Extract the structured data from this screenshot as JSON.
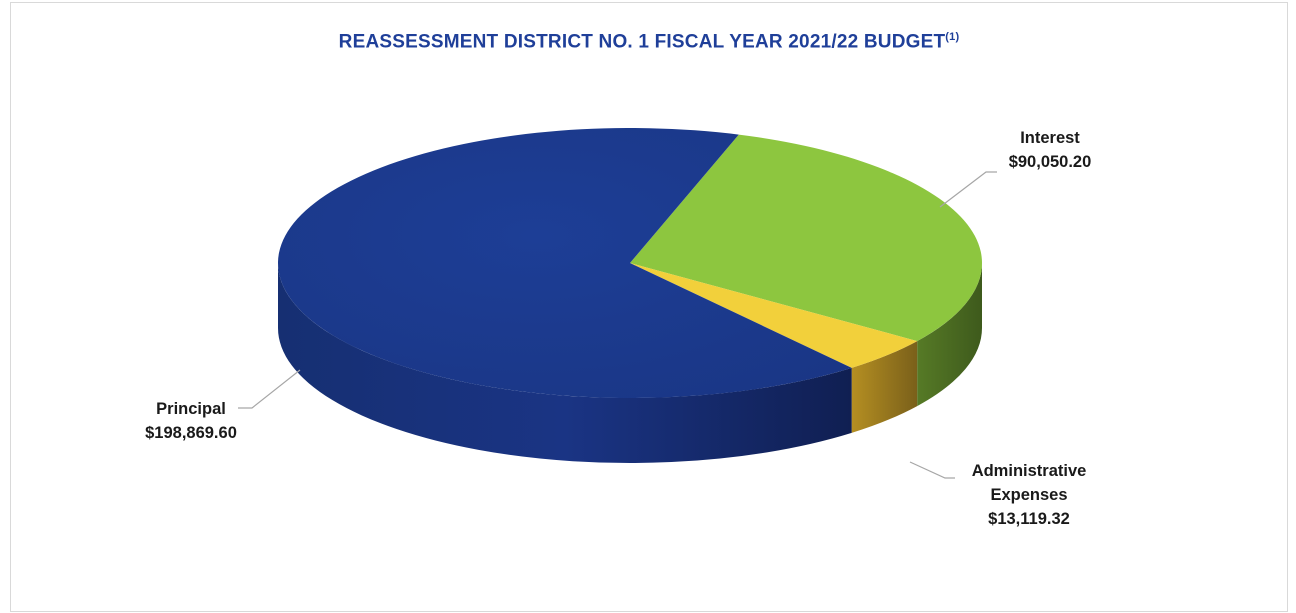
{
  "chart_data": {
    "type": "pie",
    "title": "REASSESSMENT DISTRICT NO. 1 FISCAL YEAR 2021/22 BUDGET",
    "title_note": "(1)",
    "slices": [
      {
        "label": "Principal",
        "value_label": "$198,869.60",
        "value": 198869.6,
        "color": "#1e3a8a"
      },
      {
        "label": "Interest",
        "value_label": "$90,050.20",
        "value": 90050.2,
        "color": "#8dc63f"
      },
      {
        "label": "Administrative Expenses",
        "value_label": "$13,119.32",
        "value": 13119.32,
        "color": "#f2d03b"
      }
    ]
  }
}
